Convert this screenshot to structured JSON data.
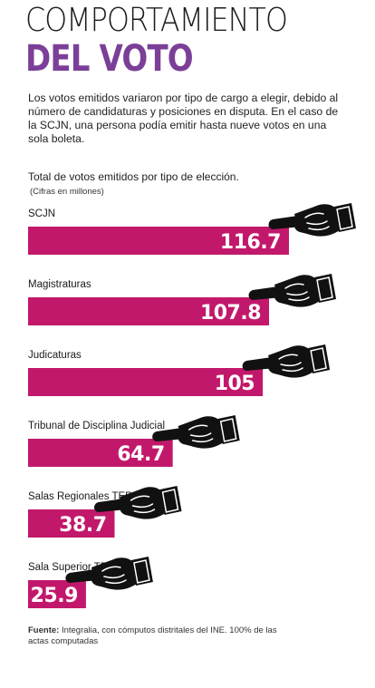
{
  "header": {
    "title_line1": "COMPORTAMIENTO",
    "title_line2": "DEL VOTO"
  },
  "intro": "Los votos emitidos variaron por tipo de cargo a elegir, debido al número de candidaturas y posiciones en disputa. En el caso de la SCJN, una persona podía emitir hasta nueve votos en una sola boleta.",
  "colors": {
    "bar": "#c2186b",
    "title_accent": "#7b3f98"
  },
  "icons": {
    "bar_end": "pointing-hand-icon"
  },
  "chart_data": {
    "type": "bar",
    "orientation": "horizontal",
    "title": "Total de votos emitidos por tipo de elección.",
    "subtitle": "(Cifras en millones)",
    "categories": [
      "SCJN",
      "Magistraturas",
      "Judicaturas",
      "Tribunal de Disciplina Judicial",
      "Salas Regionales TEPJF",
      "Sala Superior TEPJF"
    ],
    "values": [
      116.7,
      107.8,
      105,
      64.7,
      38.7,
      25.9
    ],
    "value_labels": [
      "116.7",
      "107.8",
      "105",
      "64.7",
      "38.7",
      "25.9"
    ],
    "xlim": [
      0,
      116.7
    ]
  },
  "source": {
    "label": "Fuente:",
    "text": " Integralia, con cómputos distritales del INE. 100% de las actas computadas"
  }
}
